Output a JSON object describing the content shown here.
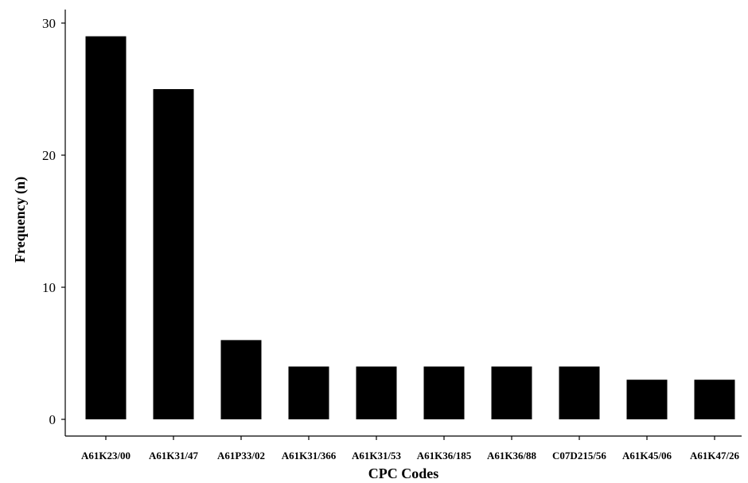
{
  "chart_data": {
    "type": "bar",
    "title": "",
    "xlabel": "CPC Codes",
    "ylabel": "Frequency (n)",
    "categories": [
      "A61K23/00",
      "A61K31/47",
      "A61P33/02",
      "A61K31/366",
      "A61K31/53",
      "A61K36/185",
      "A61K36/88",
      "C07D215/56",
      "A61K45/06",
      "A61K47/26"
    ],
    "values": [
      29,
      25,
      6,
      4,
      4,
      4,
      4,
      4,
      3,
      3
    ],
    "ylim": [
      0,
      31
    ],
    "yticks": [
      0,
      10,
      20,
      30
    ],
    "grid": false,
    "legend": "none",
    "bar_color": "#000000"
  }
}
